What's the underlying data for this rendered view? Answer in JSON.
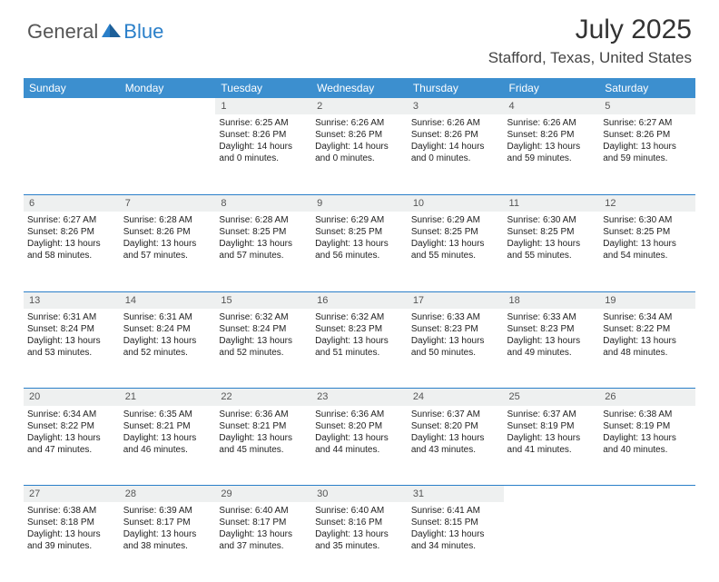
{
  "brand": {
    "part1": "General",
    "part2": "Blue"
  },
  "title": "July 2025",
  "location": "Stafford, Texas, United States",
  "colors": {
    "header_bg": "#3c8fcf",
    "header_text": "#ffffff",
    "daynum_bg": "#eef0f0",
    "row_divider": "#2a7fc9",
    "logo_accent": "#2a7fc9",
    "body_text": "#222222"
  },
  "day_headers": [
    "Sunday",
    "Monday",
    "Tuesday",
    "Wednesday",
    "Thursday",
    "Friday",
    "Saturday"
  ],
  "weeks": [
    {
      "nums": [
        "",
        "",
        "1",
        "2",
        "3",
        "4",
        "5"
      ],
      "cells": [
        null,
        null,
        {
          "sunrise": "6:25 AM",
          "sunset": "8:26 PM",
          "dl1": "14 hours",
          "dl2": "and 0 minutes."
        },
        {
          "sunrise": "6:26 AM",
          "sunset": "8:26 PM",
          "dl1": "14 hours",
          "dl2": "and 0 minutes."
        },
        {
          "sunrise": "6:26 AM",
          "sunset": "8:26 PM",
          "dl1": "14 hours",
          "dl2": "and 0 minutes."
        },
        {
          "sunrise": "6:26 AM",
          "sunset": "8:26 PM",
          "dl1": "13 hours",
          "dl2": "and 59 minutes."
        },
        {
          "sunrise": "6:27 AM",
          "sunset": "8:26 PM",
          "dl1": "13 hours",
          "dl2": "and 59 minutes."
        }
      ]
    },
    {
      "nums": [
        "6",
        "7",
        "8",
        "9",
        "10",
        "11",
        "12"
      ],
      "cells": [
        {
          "sunrise": "6:27 AM",
          "sunset": "8:26 PM",
          "dl1": "13 hours",
          "dl2": "and 58 minutes."
        },
        {
          "sunrise": "6:28 AM",
          "sunset": "8:26 PM",
          "dl1": "13 hours",
          "dl2": "and 57 minutes."
        },
        {
          "sunrise": "6:28 AM",
          "sunset": "8:25 PM",
          "dl1": "13 hours",
          "dl2": "and 57 minutes."
        },
        {
          "sunrise": "6:29 AM",
          "sunset": "8:25 PM",
          "dl1": "13 hours",
          "dl2": "and 56 minutes."
        },
        {
          "sunrise": "6:29 AM",
          "sunset": "8:25 PM",
          "dl1": "13 hours",
          "dl2": "and 55 minutes."
        },
        {
          "sunrise": "6:30 AM",
          "sunset": "8:25 PM",
          "dl1": "13 hours",
          "dl2": "and 55 minutes."
        },
        {
          "sunrise": "6:30 AM",
          "sunset": "8:25 PM",
          "dl1": "13 hours",
          "dl2": "and 54 minutes."
        }
      ]
    },
    {
      "nums": [
        "13",
        "14",
        "15",
        "16",
        "17",
        "18",
        "19"
      ],
      "cells": [
        {
          "sunrise": "6:31 AM",
          "sunset": "8:24 PM",
          "dl1": "13 hours",
          "dl2": "and 53 minutes."
        },
        {
          "sunrise": "6:31 AM",
          "sunset": "8:24 PM",
          "dl1": "13 hours",
          "dl2": "and 52 minutes."
        },
        {
          "sunrise": "6:32 AM",
          "sunset": "8:24 PM",
          "dl1": "13 hours",
          "dl2": "and 52 minutes."
        },
        {
          "sunrise": "6:32 AM",
          "sunset": "8:23 PM",
          "dl1": "13 hours",
          "dl2": "and 51 minutes."
        },
        {
          "sunrise": "6:33 AM",
          "sunset": "8:23 PM",
          "dl1": "13 hours",
          "dl2": "and 50 minutes."
        },
        {
          "sunrise": "6:33 AM",
          "sunset": "8:23 PM",
          "dl1": "13 hours",
          "dl2": "and 49 minutes."
        },
        {
          "sunrise": "6:34 AM",
          "sunset": "8:22 PM",
          "dl1": "13 hours",
          "dl2": "and 48 minutes."
        }
      ]
    },
    {
      "nums": [
        "20",
        "21",
        "22",
        "23",
        "24",
        "25",
        "26"
      ],
      "cells": [
        {
          "sunrise": "6:34 AM",
          "sunset": "8:22 PM",
          "dl1": "13 hours",
          "dl2": "and 47 minutes."
        },
        {
          "sunrise": "6:35 AM",
          "sunset": "8:21 PM",
          "dl1": "13 hours",
          "dl2": "and 46 minutes."
        },
        {
          "sunrise": "6:36 AM",
          "sunset": "8:21 PM",
          "dl1": "13 hours",
          "dl2": "and 45 minutes."
        },
        {
          "sunrise": "6:36 AM",
          "sunset": "8:20 PM",
          "dl1": "13 hours",
          "dl2": "and 44 minutes."
        },
        {
          "sunrise": "6:37 AM",
          "sunset": "8:20 PM",
          "dl1": "13 hours",
          "dl2": "and 43 minutes."
        },
        {
          "sunrise": "6:37 AM",
          "sunset": "8:19 PM",
          "dl1": "13 hours",
          "dl2": "and 41 minutes."
        },
        {
          "sunrise": "6:38 AM",
          "sunset": "8:19 PM",
          "dl1": "13 hours",
          "dl2": "and 40 minutes."
        }
      ]
    },
    {
      "nums": [
        "27",
        "28",
        "29",
        "30",
        "31",
        "",
        ""
      ],
      "cells": [
        {
          "sunrise": "6:38 AM",
          "sunset": "8:18 PM",
          "dl1": "13 hours",
          "dl2": "and 39 minutes."
        },
        {
          "sunrise": "6:39 AM",
          "sunset": "8:17 PM",
          "dl1": "13 hours",
          "dl2": "and 38 minutes."
        },
        {
          "sunrise": "6:40 AM",
          "sunset": "8:17 PM",
          "dl1": "13 hours",
          "dl2": "and 37 minutes."
        },
        {
          "sunrise": "6:40 AM",
          "sunset": "8:16 PM",
          "dl1": "13 hours",
          "dl2": "and 35 minutes."
        },
        {
          "sunrise": "6:41 AM",
          "sunset": "8:15 PM",
          "dl1": "13 hours",
          "dl2": "and 34 minutes."
        },
        null,
        null
      ]
    }
  ],
  "labels": {
    "sunrise": "Sunrise: ",
    "sunset": "Sunset: ",
    "daylight": "Daylight: "
  }
}
